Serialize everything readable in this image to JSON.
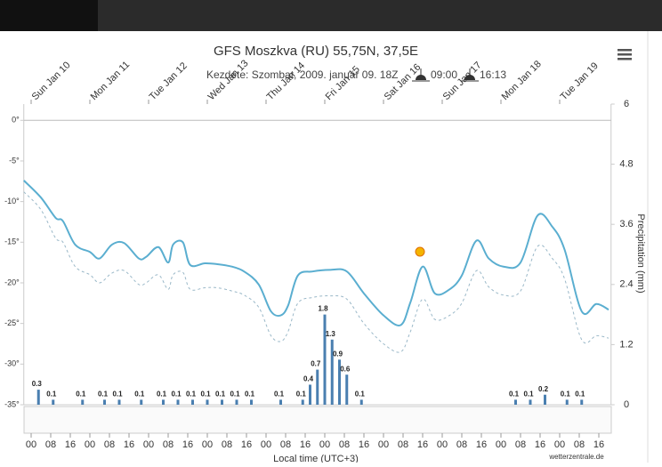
{
  "chart_data": {
    "type": "line",
    "title": "GFS Moszkva (RU) 55,75N, 37,5E",
    "subtitle": "Kezdete: Szombat, 2009. január 09. 18Z",
    "sunrise": "09:00",
    "sunset": "16:13",
    "xlabel": "Local time (UTC+3)",
    "y2label": "Precipitation (mm)",
    "credit": "wetterzentrale.de",
    "x": [
      -3,
      4,
      10,
      13,
      18,
      24,
      28,
      33,
      38,
      44,
      47,
      52,
      56,
      58,
      62,
      65,
      71,
      76,
      82,
      87,
      93,
      98,
      102,
      105,
      109,
      115,
      122,
      129,
      136,
      144,
      151,
      155,
      160,
      165,
      171,
      176,
      182,
      187,
      193,
      200,
      207,
      213,
      218,
      225,
      231,
      236
    ],
    "series": [
      {
        "color": "#5aaed0",
        "dash": false,
        "values": [
          -7.4,
          -9.5,
          -12,
          -12.4,
          -15.3,
          -16.2,
          -17,
          -15.3,
          -15.1,
          -17,
          -16.8,
          -15.6,
          -17.5,
          -15.3,
          -15,
          -17.8,
          -17.6,
          -17.7,
          -18,
          -18.6,
          -20.2,
          -23.5,
          -24,
          -22.8,
          -19.1,
          -18.6,
          -18.4,
          -18.6,
          -21.3,
          -24,
          -25.2,
          -22.4,
          -18,
          -21.3,
          -20.8,
          -19.1,
          -14.8,
          -17,
          -18,
          -17.5,
          -11.7,
          -13.1,
          -15.9,
          -23.5,
          -22.6,
          -23.3
        ]
      },
      {
        "color": "#9ab8c8",
        "dash": true,
        "values": [
          -8.8,
          -11,
          -14.5,
          -15,
          -18,
          -19,
          -20,
          -18.8,
          -18.5,
          -20.2,
          -20,
          -19,
          -20.8,
          -19,
          -18.7,
          -20.8,
          -20.6,
          -20.6,
          -21,
          -21.5,
          -23,
          -26.5,
          -27.2,
          -26,
          -22.5,
          -21.8,
          -21.6,
          -22,
          -25,
          -27.5,
          -28.5,
          -26,
          -22,
          -24.5,
          -24,
          -22.5,
          -18.5,
          -20.5,
          -21.5,
          -21,
          -15.5,
          -17,
          -19.5,
          -27,
          -26.5,
          -26.8
        ]
      }
    ],
    "precipitation": {
      "type": "bar",
      "axis": "y2",
      "color": "#4a7fb0",
      "x": [
        3,
        9,
        21,
        30,
        36,
        45,
        54,
        60,
        66,
        72,
        78,
        84,
        90,
        102,
        111,
        114,
        117,
        120,
        123,
        126,
        129,
        135,
        198,
        204,
        210,
        219,
        225
      ],
      "values": [
        0.3,
        0.1,
        0.1,
        0.1,
        0.1,
        0.1,
        0.1,
        0.1,
        0.1,
        0.1,
        0.1,
        0.1,
        0.1,
        0.1,
        0.1,
        0.4,
        0.7,
        1.8,
        1.3,
        0.9,
        0.6,
        0.1,
        0.1,
        0.1,
        0.2,
        0.1,
        0.1
      ]
    },
    "xlim": [
      -3,
      237
    ],
    "xticks": [
      {
        "value": 0,
        "label": "00"
      },
      {
        "value": 8,
        "label": "08"
      },
      {
        "value": 16,
        "label": "16"
      },
      {
        "value": 24,
        "label": "00"
      },
      {
        "value": 32,
        "label": "08"
      },
      {
        "value": 40,
        "label": "16"
      },
      {
        "value": 48,
        "label": "00"
      },
      {
        "value": 56,
        "label": "08"
      },
      {
        "value": 64,
        "label": "16"
      },
      {
        "value": 72,
        "label": "00"
      },
      {
        "value": 80,
        "label": "08"
      },
      {
        "value": 88,
        "label": "16"
      },
      {
        "value": 96,
        "label": "00"
      },
      {
        "value": 104,
        "label": "08"
      },
      {
        "value": 112,
        "label": "16"
      },
      {
        "value": 120,
        "label": "00"
      },
      {
        "value": 128,
        "label": "08"
      },
      {
        "value": 136,
        "label": "16"
      },
      {
        "value": 144,
        "label": "00"
      },
      {
        "value": 152,
        "label": "08"
      },
      {
        "value": 160,
        "label": "16"
      },
      {
        "value": 168,
        "label": "00"
      },
      {
        "value": 176,
        "label": "08"
      },
      {
        "value": 184,
        "label": "16"
      },
      {
        "value": 192,
        "label": "00"
      },
      {
        "value": 200,
        "label": "08"
      },
      {
        "value": 208,
        "label": "16"
      },
      {
        "value": 216,
        "label": "00"
      },
      {
        "value": 224,
        "label": "08"
      },
      {
        "value": 232,
        "label": "16"
      }
    ],
    "x2ticks": [
      {
        "value": 0,
        "label": "Sun Jan 10"
      },
      {
        "value": 24,
        "label": "Mon Jan 11"
      },
      {
        "value": 48,
        "label": "Tue Jan 12"
      },
      {
        "value": 72,
        "label": "Wed Jan 13"
      },
      {
        "value": 96,
        "label": "Thu Jan 14"
      },
      {
        "value": 120,
        "label": "Fri Jan 15"
      },
      {
        "value": 144,
        "label": "Sat Jan 16"
      },
      {
        "value": 168,
        "label": "Sun Jan 17"
      },
      {
        "value": 192,
        "label": "Mon Jan 18"
      },
      {
        "value": 216,
        "label": "Tue Jan 19"
      }
    ],
    "ylim": [
      -35,
      2
    ],
    "yticks": [
      {
        "value": 0,
        "label": "0°"
      },
      {
        "value": -5,
        "label": "-5°"
      },
      {
        "value": -10,
        "label": "-10°"
      },
      {
        "value": -15,
        "label": "-15°"
      },
      {
        "value": -20,
        "label": "-20°"
      },
      {
        "value": -25,
        "label": "-25°"
      },
      {
        "value": -30,
        "label": "-30°"
      },
      {
        "value": -35,
        "label": "-35°"
      }
    ],
    "y2lim": [
      0,
      6
    ],
    "y2ticks": [
      0,
      1.2,
      2.4,
      3.6,
      4.8,
      6
    ]
  }
}
